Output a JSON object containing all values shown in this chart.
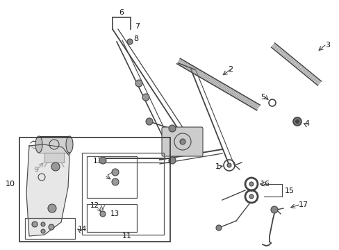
{
  "bg_color": "#ffffff",
  "lc": "#444444",
  "figsize": [
    4.89,
    3.6
  ],
  "dpi": 100,
  "label_fs": 7.5,
  "xlim": [
    0,
    489
  ],
  "ylim": [
    360,
    0
  ]
}
